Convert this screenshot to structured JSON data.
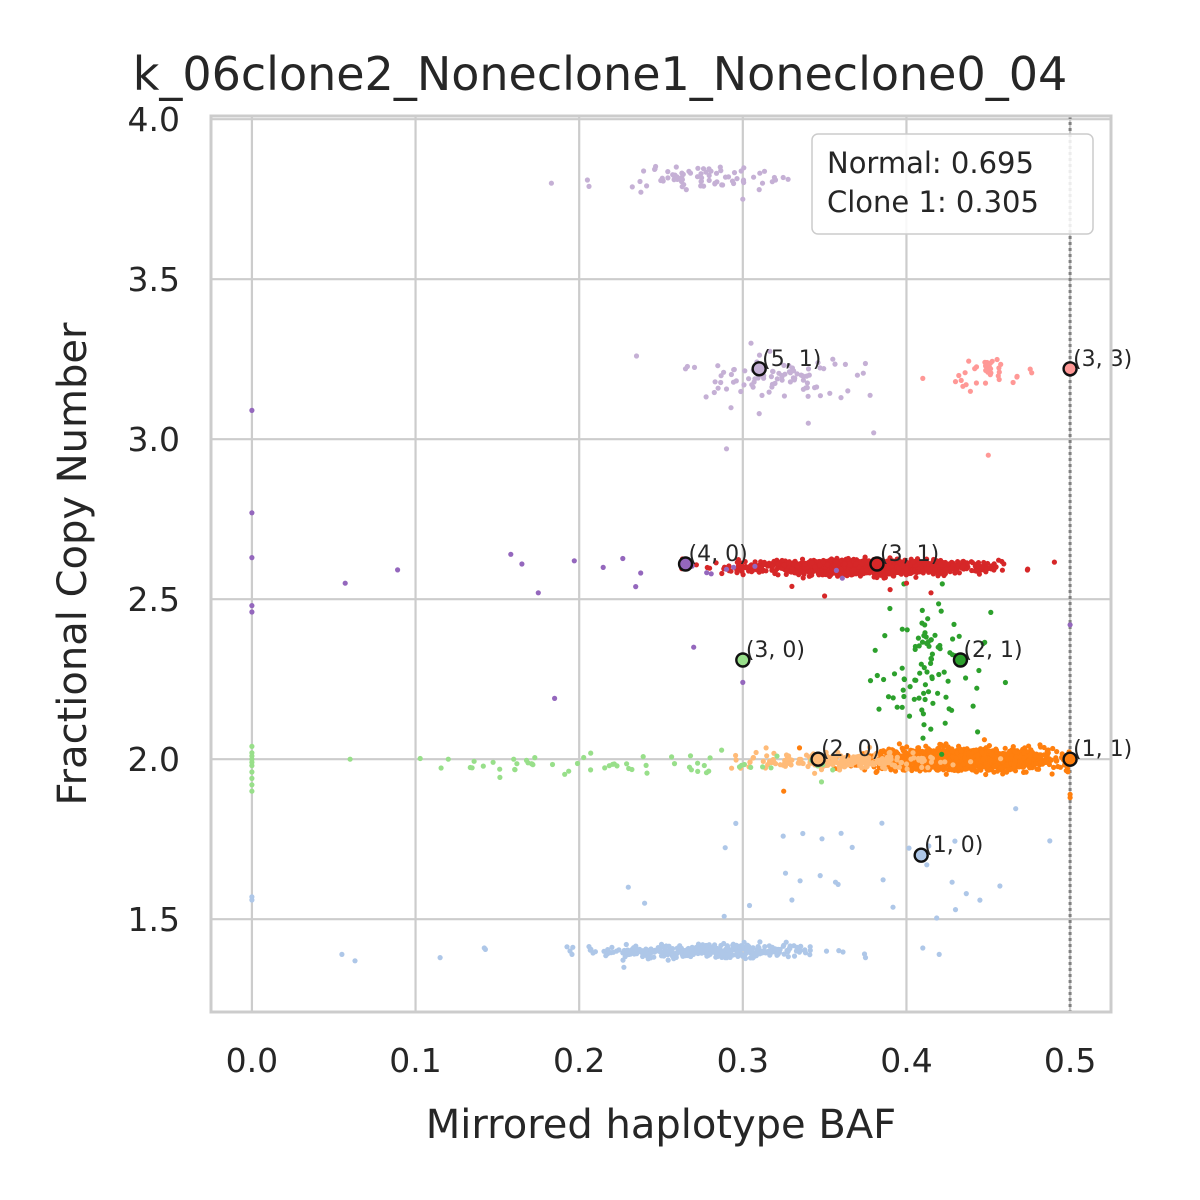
{
  "chart_data": {
    "type": "scatter",
    "title": "k_06clone2_Noneclone1_Noneclone0_04",
    "xlabel": "Mirrored haplotype BAF",
    "ylabel": "Fractional Copy Number",
    "xlim": [
      -0.025,
      0.525
    ],
    "ylim": [
      1.21,
      4.01
    ],
    "x_ticks": [
      0.0,
      0.1,
      0.2,
      0.3,
      0.4,
      0.5
    ],
    "x_tick_labels": [
      "0.0",
      "0.1",
      "0.2",
      "0.3",
      "0.4",
      "0.5"
    ],
    "y_ticks": [
      1.5,
      2.0,
      2.5,
      3.0,
      3.5,
      4.0
    ],
    "y_tick_labels": [
      "1.5",
      "2.0",
      "2.5",
      "3.0",
      "3.5",
      "4.0"
    ],
    "grid": true,
    "reference_line": {
      "x": 0.5,
      "style": "dotted",
      "color": "#808080"
    },
    "legend": {
      "placement": "top-right",
      "entries": [
        "Normal: 0.695",
        "Clone 1: 0.305"
      ]
    },
    "clusters": [
      {
        "color": "#aec7e8",
        "center": [
          0.28,
          1.4
        ],
        "spread": [
          0.034,
          0.012
        ],
        "count": 340
      },
      {
        "color": "#aec7e8",
        "center": [
          0.37,
          1.67
        ],
        "spread": [
          0.05,
          0.09
        ],
        "count": 26
      },
      {
        "color": "#ff7f0e",
        "center": [
          0.435,
          2.0
        ],
        "spread": [
          0.026,
          0.016
        ],
        "count": 1700
      },
      {
        "color": "#ffbb78",
        "center": [
          0.36,
          1.995
        ],
        "spread": [
          0.03,
          0.013
        ],
        "count": 240
      },
      {
        "color": "#98df8a",
        "center": [
          0.23,
          1.98
        ],
        "spread": [
          0.06,
          0.018
        ],
        "count": 60
      },
      {
        "color": "#2ca02c",
        "center": [
          0.41,
          2.28
        ],
        "spread": [
          0.016,
          0.11
        ],
        "count": 95
      },
      {
        "color": "#d62728",
        "center": [
          0.375,
          2.6
        ],
        "spread": [
          0.034,
          0.011
        ],
        "count": 1350
      },
      {
        "color": "#9467bd",
        "center": [
          0.245,
          2.59
        ],
        "spread": [
          0.05,
          0.02
        ],
        "count": 14
      },
      {
        "color": "#c5b0d5",
        "center": [
          0.32,
          3.19
        ],
        "spread": [
          0.022,
          0.035
        ],
        "count": 85
      },
      {
        "color": "#c5b0d5",
        "center": [
          0.275,
          3.82
        ],
        "spread": [
          0.022,
          0.018
        ],
        "count": 70
      },
      {
        "color": "#ff9896",
        "center": [
          0.45,
          3.21
        ],
        "spread": [
          0.01,
          0.025
        ],
        "count": 35
      }
    ],
    "outliers": [
      {
        "color": "#98df8a",
        "points": [
          [
            0.0,
            1.9
          ],
          [
            0.0,
            1.92
          ],
          [
            0.0,
            1.94
          ],
          [
            0.0,
            1.96
          ],
          [
            0.0,
            1.98
          ],
          [
            0.0,
            2.0
          ],
          [
            0.0,
            2.02
          ],
          [
            0.0,
            2.04
          ],
          [
            0.0,
            1.99
          ],
          [
            0.0,
            2.01
          ],
          [
            0.06,
            2.0
          ],
          [
            0.12,
            2.0
          ],
          [
            0.16,
            2.0
          ]
        ]
      },
      {
        "color": "#9467bd",
        "points": [
          [
            0.0,
            3.09
          ],
          [
            0.0,
            2.77
          ],
          [
            0.0,
            2.63
          ],
          [
            0.0,
            2.48
          ],
          [
            0.0,
            2.46
          ],
          [
            0.057,
            2.55
          ],
          [
            0.175,
            2.52
          ],
          [
            0.165,
            2.61
          ],
          [
            0.197,
            2.62
          ],
          [
            0.185,
            2.19
          ],
          [
            0.27,
            2.35
          ],
          [
            0.3,
            2.24
          ],
          [
            0.5,
            2.42
          ]
        ]
      },
      {
        "color": "#aec7e8",
        "points": [
          [
            0.0,
            1.57
          ],
          [
            0.0,
            1.56
          ],
          [
            0.055,
            1.39
          ],
          [
            0.063,
            1.37
          ],
          [
            0.115,
            1.38
          ],
          [
            0.142,
            1.41
          ],
          [
            0.23,
            1.6
          ],
          [
            0.24,
            1.55
          ],
          [
            0.33,
            1.56
          ],
          [
            0.335,
            1.62
          ],
          [
            0.385,
            1.8
          ],
          [
            0.42,
            1.39
          ],
          [
            0.375,
            1.38
          ],
          [
            0.41,
            1.41
          ],
          [
            0.43,
            1.53
          ]
        ]
      },
      {
        "color": "#c5b0d5",
        "points": [
          [
            0.183,
            3.8
          ],
          [
            0.205,
            3.81
          ],
          [
            0.206,
            3.79
          ],
          [
            0.283,
            3.8
          ],
          [
            0.3,
            3.75
          ],
          [
            0.312,
            3.8
          ],
          [
            0.32,
            3.81
          ],
          [
            0.31,
            3.78
          ],
          [
            0.235,
            3.26
          ],
          [
            0.265,
            3.22
          ],
          [
            0.355,
            3.25
          ],
          [
            0.37,
            3.2
          ],
          [
            0.34,
            3.05
          ],
          [
            0.36,
            3.13
          ],
          [
            0.38,
            3.02
          ],
          [
            0.31,
            3.08
          ],
          [
            0.29,
            2.97
          ],
          [
            0.305,
            3.3
          ]
        ]
      },
      {
        "color": "#ff9896",
        "points": [
          [
            0.41,
            3.19
          ],
          [
            0.43,
            3.18
          ],
          [
            0.45,
            2.95
          ]
        ]
      },
      {
        "color": "#ff7f0e",
        "points": [
          [
            0.5,
            1.88
          ],
          [
            0.5,
            1.89
          ],
          [
            0.325,
            1.9
          ]
        ]
      },
      {
        "color": "#d62728",
        "points": [
          [
            0.33,
            2.54
          ],
          [
            0.35,
            2.51
          ],
          [
            0.4,
            2.55
          ],
          [
            0.415,
            2.52
          ],
          [
            0.39,
            2.53
          ]
        ]
      }
    ],
    "points": [
      {
        "label": "(5, 1)",
        "x": 0.31,
        "y": 3.22,
        "color": "#c5b0d5"
      },
      {
        "label": "(3, 3)",
        "x": 0.5,
        "y": 3.22,
        "color": "#ff9896"
      },
      {
        "label": "(4, 0)",
        "x": 0.265,
        "y": 2.61,
        "color": "#9467bd"
      },
      {
        "label": "(3, 1)",
        "x": 0.382,
        "y": 2.61,
        "color": "#d62728"
      },
      {
        "label": "(3, 0)",
        "x": 0.3,
        "y": 2.31,
        "color": "#98df8a"
      },
      {
        "label": "(2, 1)",
        "x": 0.433,
        "y": 2.31,
        "color": "#2ca02c"
      },
      {
        "label": "(2, 0)",
        "x": 0.346,
        "y": 2.0,
        "color": "#ffbb78"
      },
      {
        "label": "(1, 1)",
        "x": 0.5,
        "y": 2.0,
        "color": "#ff7f0e"
      },
      {
        "label": "(1, 0)",
        "x": 0.409,
        "y": 1.7,
        "color": "#aec7e8"
      }
    ]
  }
}
